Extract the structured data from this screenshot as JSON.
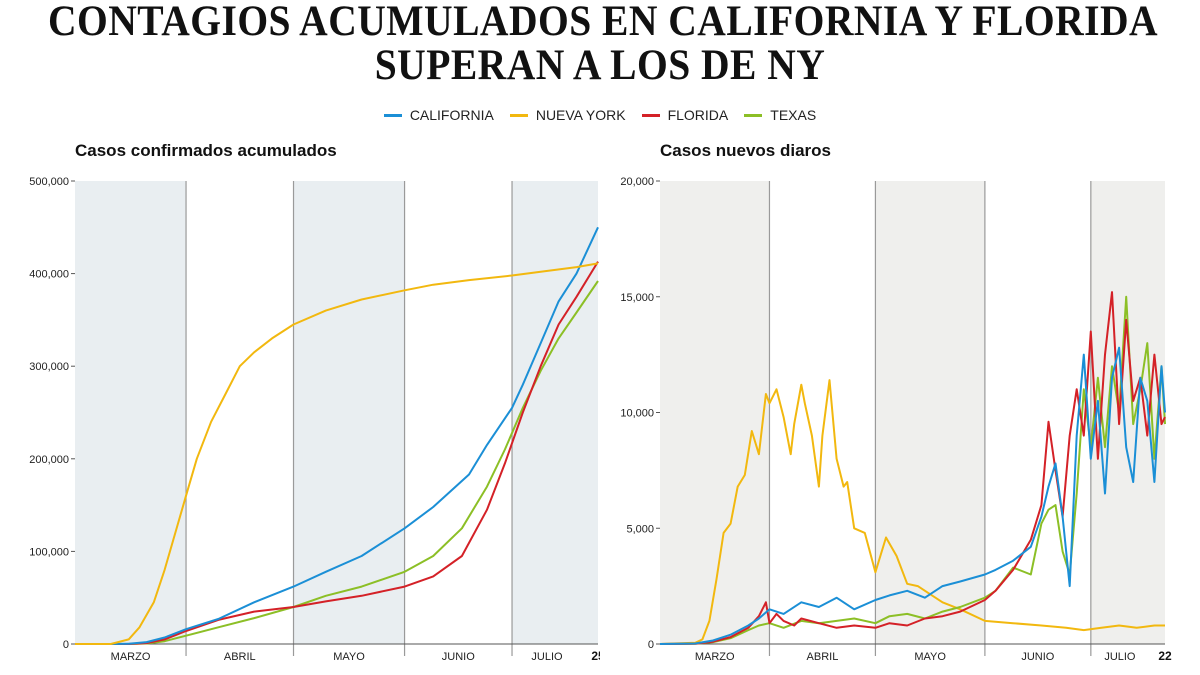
{
  "title": {
    "line1": "CONTAGIOS ACUMULADOS EN CALIFORNIA Y FLORIDA",
    "line2": "SUPERAN A LOS DE NY"
  },
  "legend": [
    {
      "label": "CALIFORNIA",
      "color": "#1b8fd6"
    },
    {
      "label": "NUEVA YORK",
      "color": "#f2b80f"
    },
    {
      "label": "FLORIDA",
      "color": "#d42127"
    },
    {
      "label": "TEXAS",
      "color": "#8cbf26"
    }
  ],
  "chart_data": [
    {
      "type": "line",
      "title": "Casos confirmados acumulados",
      "xlabel": "",
      "ylabel": "",
      "ylim": [
        0,
        500000
      ],
      "yticks": [
        "0",
        "100,000",
        "200,000",
        "300,000",
        "400,000",
        "500,000"
      ],
      "ytick_values": [
        0,
        100000,
        200000,
        300000,
        400000,
        500000
      ],
      "months": [
        "MARZO",
        "ABRIL",
        "MAYO",
        "JUNIO",
        "JULIO"
      ],
      "end_day_label": "25",
      "x_unit": "days since Mar 1",
      "x_end": 146,
      "series": [
        {
          "name": "CALIFORNIA",
          "x": [
            0,
            10,
            15,
            20,
            25,
            31,
            40,
            50,
            61,
            70,
            80,
            92,
            100,
            110,
            115,
            122,
            125,
            130,
            135,
            140,
            146
          ],
          "values": [
            0,
            0,
            300,
            2000,
            7000,
            16000,
            27000,
            45000,
            62000,
            78000,
            95000,
            125000,
            148000,
            183000,
            215000,
            255000,
            280000,
            325000,
            370000,
            400000,
            450000
          ]
        },
        {
          "name": "NUEVA YORK",
          "x": [
            0,
            10,
            15,
            18,
            22,
            25,
            28,
            31,
            34,
            38,
            42,
            46,
            50,
            55,
            61,
            70,
            80,
            92,
            100,
            110,
            122,
            130,
            140,
            146
          ],
          "values": [
            0,
            0,
            5000,
            18000,
            45000,
            80000,
            120000,
            160000,
            200000,
            240000,
            270000,
            300000,
            315000,
            330000,
            345000,
            360000,
            372000,
            382000,
            388000,
            393000,
            398000,
            402000,
            407000,
            411000
          ]
        },
        {
          "name": "FLORIDA",
          "x": [
            0,
            10,
            15,
            20,
            25,
            31,
            40,
            50,
            61,
            70,
            80,
            92,
            100,
            108,
            115,
            120,
            125,
            130,
            135,
            140,
            146
          ],
          "values": [
            0,
            0,
            0,
            1000,
            5000,
            14000,
            26000,
            35000,
            40000,
            46000,
            52000,
            62000,
            73000,
            95000,
            145000,
            195000,
            250000,
            300000,
            345000,
            375000,
            413000
          ]
        },
        {
          "name": "TEXAS",
          "x": [
            0,
            10,
            15,
            20,
            25,
            31,
            40,
            50,
            61,
            70,
            80,
            92,
            100,
            108,
            115,
            120,
            125,
            130,
            135,
            140,
            146
          ],
          "values": [
            0,
            0,
            0,
            500,
            3000,
            9000,
            18000,
            28000,
            40000,
            52000,
            62000,
            78000,
            95000,
            125000,
            170000,
            210000,
            255000,
            295000,
            330000,
            358000,
            392000
          ]
        }
      ]
    },
    {
      "type": "line",
      "title": "Casos nuevos diaros",
      "xlabel": "",
      "ylabel": "",
      "ylim": [
        0,
        20000
      ],
      "yticks": [
        "0",
        "5,000",
        "10,000",
        "15,000",
        "20,000"
      ],
      "ytick_values": [
        0,
        5000,
        10000,
        15000,
        20000
      ],
      "months": [
        "MARZO",
        "ABRIL",
        "MAYO",
        "JUNIO",
        "JULIO"
      ],
      "end_day_label": "22",
      "x_unit": "days since Mar 1",
      "x_end": 143,
      "series": [
        {
          "name": "CALIFORNIA",
          "x": [
            0,
            10,
            15,
            20,
            25,
            28,
            31,
            35,
            40,
            45,
            50,
            55,
            61,
            65,
            70,
            75,
            80,
            85,
            92,
            95,
            100,
            105,
            108,
            110,
            112,
            114,
            116,
            118,
            120,
            122,
            124,
            126,
            128,
            130,
            132,
            134,
            136,
            138,
            140,
            142,
            143
          ],
          "values": [
            0,
            20,
            150,
            400,
            800,
            1100,
            1500,
            1300,
            1800,
            1600,
            2000,
            1500,
            1900,
            2100,
            2300,
            2000,
            2500,
            2700,
            3000,
            3200,
            3600,
            4200,
            5500,
            6800,
            7800,
            5500,
            2500,
            9000,
            12500,
            8000,
            10500,
            6500,
            11500,
            12800,
            8500,
            7000,
            11500,
            10500,
            7000,
            12000,
            10000
          ]
        },
        {
          "name": "NUEVA YORK",
          "x": [
            0,
            10,
            12,
            14,
            16,
            18,
            20,
            22,
            24,
            26,
            28,
            30,
            31,
            33,
            35,
            37,
            38,
            40,
            41,
            43,
            45,
            46,
            48,
            50,
            52,
            53,
            55,
            58,
            61,
            64,
            67,
            70,
            73,
            76,
            80,
            85,
            92,
            100,
            108,
            115,
            120,
            125,
            130,
            135,
            140,
            143
          ],
          "values": [
            0,
            50,
            200,
            1000,
            2800,
            4800,
            5200,
            6800,
            7300,
            9200,
            8200,
            10800,
            10400,
            11000,
            9800,
            8200,
            9500,
            11200,
            10400,
            9000,
            6800,
            9000,
            11400,
            8000,
            6800,
            7000,
            5000,
            4800,
            3100,
            4600,
            3800,
            2600,
            2500,
            2200,
            1800,
            1500,
            1000,
            900,
            800,
            700,
            600,
            700,
            800,
            700,
            800,
            800
          ]
        },
        {
          "name": "FLORIDA",
          "x": [
            0,
            10,
            15,
            20,
            25,
            28,
            30,
            31,
            33,
            35,
            38,
            40,
            45,
            50,
            55,
            61,
            65,
            70,
            75,
            80,
            85,
            92,
            95,
            100,
            105,
            108,
            110,
            112,
            114,
            116,
            118,
            120,
            122,
            124,
            126,
            128,
            130,
            132,
            134,
            136,
            138,
            140,
            142,
            143
          ],
          "values": [
            0,
            10,
            100,
            300,
            700,
            1200,
            1800,
            900,
            1300,
            1000,
            800,
            1100,
            900,
            700,
            800,
            700,
            900,
            800,
            1100,
            1200,
            1400,
            1900,
            2300,
            3200,
            4500,
            6000,
            9600,
            7500,
            5500,
            9000,
            11000,
            9000,
            13500,
            8000,
            12500,
            15200,
            9500,
            14000,
            10500,
            11500,
            9000,
            12500,
            9500,
            9800
          ]
        },
        {
          "name": "TEXAS",
          "x": [
            0,
            10,
            15,
            20,
            25,
            28,
            31,
            35,
            40,
            45,
            50,
            55,
            61,
            65,
            70,
            75,
            80,
            85,
            92,
            95,
            100,
            105,
            108,
            110,
            112,
            114,
            116,
            118,
            120,
            122,
            124,
            126,
            128,
            130,
            132,
            134,
            136,
            138,
            140,
            142,
            143
          ],
          "values": [
            0,
            10,
            80,
            250,
            600,
            800,
            900,
            700,
            1000,
            900,
            1000,
            1100,
            900,
            1200,
            1300,
            1100,
            1400,
            1600,
            2000,
            2300,
            3300,
            3000,
            5200,
            5800,
            6000,
            4000,
            3000,
            6500,
            11000,
            8500,
            11500,
            8500,
            12000,
            10000,
            15000,
            9500,
            11000,
            13000,
            8000,
            12000,
            9500
          ]
        }
      ]
    }
  ]
}
